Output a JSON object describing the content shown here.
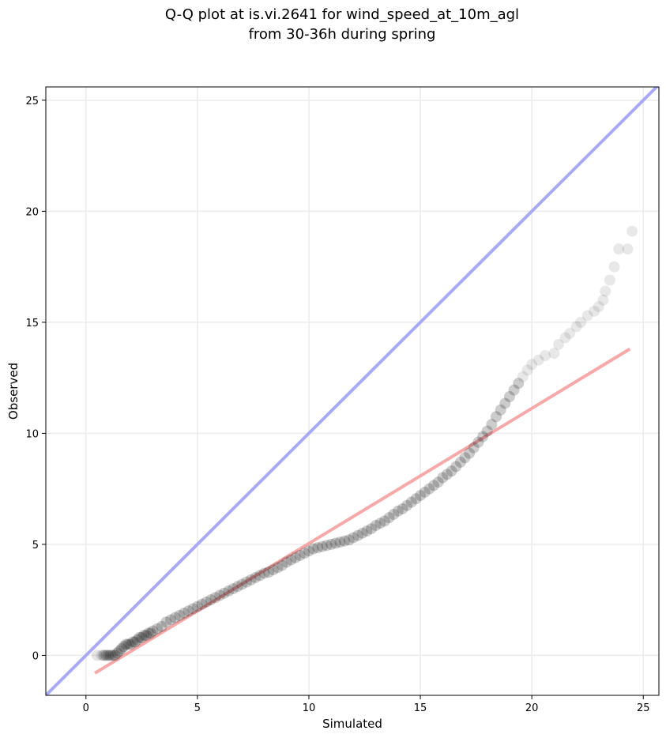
{
  "chart_data": {
    "type": "scatter",
    "title_line1": "Q-Q plot at is.vi.2641 for wind_speed_at_10m_agl",
    "title_line2": "from 30-36h during spring",
    "xlabel": "Simulated",
    "ylabel": "Observed",
    "xlim": [
      -1.8,
      25.7
    ],
    "ylim": [
      -1.8,
      25.6
    ],
    "xticks": [
      0,
      5,
      10,
      15,
      20,
      25
    ],
    "yticks": [
      0,
      5,
      10,
      15,
      20,
      25
    ],
    "grid": true,
    "colors": {
      "identity_line": "#a9aaf5",
      "fit_line": "#f7a9a9",
      "points": "#000000",
      "grid": "#ebebeb"
    },
    "identity_line": {
      "from": [
        -1.8,
        -1.8
      ],
      "to": [
        25.7,
        25.7
      ]
    },
    "fit_line": {
      "from": [
        0.4,
        -0.8
      ],
      "to": [
        24.4,
        13.8
      ]
    },
    "points": [
      [
        0.5,
        0.0
      ],
      [
        0.7,
        0.0
      ],
      [
        0.8,
        0.0
      ],
      [
        0.9,
        0.0
      ],
      [
        1.0,
        0.0
      ],
      [
        1.1,
        0.0
      ],
      [
        1.2,
        0.0
      ],
      [
        1.3,
        0.0
      ],
      [
        1.4,
        0.1
      ],
      [
        1.5,
        0.2
      ],
      [
        1.6,
        0.3
      ],
      [
        1.7,
        0.4
      ],
      [
        1.8,
        0.5
      ],
      [
        1.9,
        0.5
      ],
      [
        2.0,
        0.5
      ],
      [
        2.1,
        0.6
      ],
      [
        2.2,
        0.6
      ],
      [
        2.3,
        0.7
      ],
      [
        2.4,
        0.8
      ],
      [
        2.5,
        0.8
      ],
      [
        2.6,
        0.9
      ],
      [
        2.7,
        0.9
      ],
      [
        2.8,
        1.0
      ],
      [
        2.9,
        1.0
      ],
      [
        3.0,
        1.1
      ],
      [
        3.2,
        1.2
      ],
      [
        3.4,
        1.3
      ],
      [
        3.6,
        1.5
      ],
      [
        3.8,
        1.6
      ],
      [
        4.0,
        1.7
      ],
      [
        4.2,
        1.8
      ],
      [
        4.4,
        1.9
      ],
      [
        4.6,
        2.0
      ],
      [
        4.8,
        2.1
      ],
      [
        5.0,
        2.2
      ],
      [
        5.2,
        2.3
      ],
      [
        5.4,
        2.4
      ],
      [
        5.6,
        2.5
      ],
      [
        5.8,
        2.6
      ],
      [
        6.0,
        2.7
      ],
      [
        6.2,
        2.8
      ],
      [
        6.4,
        2.9
      ],
      [
        6.6,
        3.0
      ],
      [
        6.8,
        3.1
      ],
      [
        7.0,
        3.2
      ],
      [
        7.2,
        3.3
      ],
      [
        7.4,
        3.4
      ],
      [
        7.6,
        3.5
      ],
      [
        7.8,
        3.6
      ],
      [
        8.0,
        3.7
      ],
      [
        8.2,
        3.75
      ],
      [
        8.4,
        3.85
      ],
      [
        8.6,
        3.95
      ],
      [
        8.8,
        4.05
      ],
      [
        9.0,
        4.2
      ],
      [
        9.2,
        4.3
      ],
      [
        9.4,
        4.4
      ],
      [
        9.6,
        4.5
      ],
      [
        9.8,
        4.6
      ],
      [
        10.0,
        4.7
      ],
      [
        10.2,
        4.8
      ],
      [
        10.4,
        4.85
      ],
      [
        10.6,
        4.9
      ],
      [
        10.8,
        4.95
      ],
      [
        11.0,
        5.0
      ],
      [
        11.2,
        5.05
      ],
      [
        11.4,
        5.1
      ],
      [
        11.6,
        5.15
      ],
      [
        11.8,
        5.2
      ],
      [
        12.0,
        5.3
      ],
      [
        12.2,
        5.4
      ],
      [
        12.4,
        5.5
      ],
      [
        12.6,
        5.6
      ],
      [
        12.8,
        5.7
      ],
      [
        13.0,
        5.85
      ],
      [
        13.2,
        5.95
      ],
      [
        13.4,
        6.05
      ],
      [
        13.6,
        6.2
      ],
      [
        13.8,
        6.35
      ],
      [
        14.0,
        6.5
      ],
      [
        14.2,
        6.6
      ],
      [
        14.4,
        6.75
      ],
      [
        14.6,
        6.9
      ],
      [
        14.8,
        7.05
      ],
      [
        15.0,
        7.2
      ],
      [
        15.2,
        7.35
      ],
      [
        15.4,
        7.5
      ],
      [
        15.6,
        7.65
      ],
      [
        15.8,
        7.8
      ],
      [
        16.0,
        8.0
      ],
      [
        16.2,
        8.15
      ],
      [
        16.4,
        8.3
      ],
      [
        16.6,
        8.5
      ],
      [
        16.8,
        8.7
      ],
      [
        17.0,
        8.9
      ],
      [
        17.2,
        9.1
      ],
      [
        17.4,
        9.35
      ],
      [
        17.6,
        9.6
      ],
      [
        17.8,
        9.85
      ],
      [
        18.0,
        10.1
      ],
      [
        18.2,
        10.4
      ],
      [
        18.4,
        10.75
      ],
      [
        18.6,
        11.05
      ],
      [
        18.8,
        11.35
      ],
      [
        19.0,
        11.65
      ],
      [
        19.2,
        11.95
      ],
      [
        19.4,
        12.25
      ],
      [
        19.6,
        12.55
      ],
      [
        19.8,
        12.85
      ],
      [
        20.0,
        13.1
      ],
      [
        20.3,
        13.3
      ],
      [
        20.6,
        13.5
      ],
      [
        21.0,
        13.6
      ],
      [
        21.2,
        14.0
      ],
      [
        21.5,
        14.3
      ],
      [
        21.7,
        14.5
      ],
      [
        22.0,
        14.8
      ],
      [
        22.2,
        15.0
      ],
      [
        22.5,
        15.3
      ],
      [
        22.8,
        15.5
      ],
      [
        23.0,
        15.7
      ],
      [
        23.2,
        16.0
      ],
      [
        23.3,
        16.4
      ],
      [
        23.5,
        16.9
      ],
      [
        23.7,
        17.5
      ],
      [
        23.9,
        18.3
      ],
      [
        24.3,
        18.3
      ],
      [
        24.5,
        19.1
      ]
    ]
  }
}
